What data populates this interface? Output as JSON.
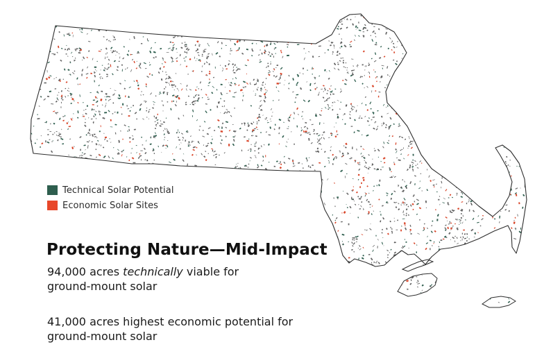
{
  "map": {
    "colors": {
      "outline": "#2d2d2d",
      "technical": "#2e5e4e",
      "economic": "#d9472b",
      "background": "#ffffff"
    }
  },
  "legend": {
    "items": [
      {
        "label": "Technical Solar Potential",
        "color": "#2e5e4e"
      },
      {
        "label": "Economic Solar Sites",
        "color": "#e8472a"
      }
    ]
  },
  "title": "Protecting Nature—Mid-Impact",
  "stats": [
    {
      "value": "94,000",
      "line1_pre": "acres ",
      "line1_em": "technically",
      "line1_post": " viable for",
      "line2": "ground-mount solar"
    },
    {
      "value": "41,000",
      "line1_pre": "acres highest economic potential for",
      "line1_em": "",
      "line1_post": "",
      "line2": "ground-mount solar"
    }
  ]
}
